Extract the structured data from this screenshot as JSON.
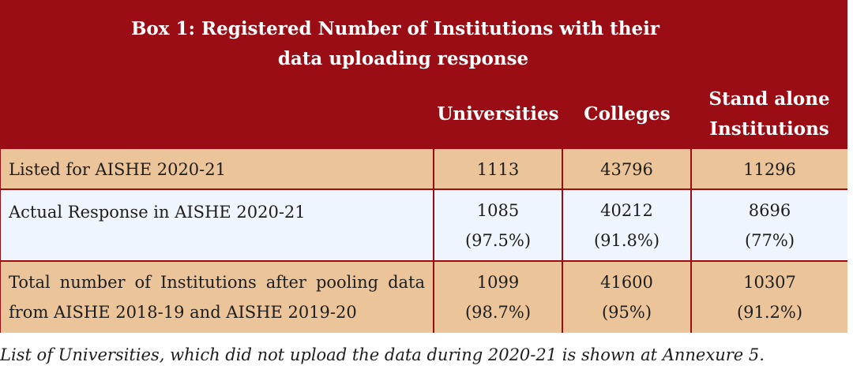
{
  "box": {
    "title_line1": "Box 1: Registered Number of Institutions with their",
    "title_line2": "data uploading response",
    "columns": {
      "universities": "Universities",
      "colleges": "Colleges",
      "standalone_line1": "Stand alone",
      "standalone_line2": "Institutions"
    },
    "rows": [
      {
        "label": "Listed for AISHE 2020-21",
        "universities": "1113",
        "colleges": "43796",
        "standalone": "11296"
      },
      {
        "label": "Actual Response in AISHE 2020-21",
        "universities": "1085",
        "universities_pct": "(97.5%)",
        "colleges": "40212",
        "colleges_pct": "(91.8%)",
        "standalone": "8696",
        "standalone_pct": "(77%)"
      },
      {
        "label_line1": "Total number of Institutions after pooling data",
        "label_line2": "from AISHE 2018-19 and AISHE 2019-20",
        "universities": "1099",
        "universities_pct": "(98.7%)",
        "colleges": "41600",
        "colleges_pct": "(95%)",
        "standalone": "10307",
        "standalone_pct": "(91.2%)"
      }
    ],
    "colors": {
      "header_background": "#9b0d15",
      "shaded_row": "#ebc49a",
      "light_row": "#eff5fc"
    }
  },
  "footnote": "List of Universities, which did not upload the data during 2020-21 is shown at Annexure 5."
}
